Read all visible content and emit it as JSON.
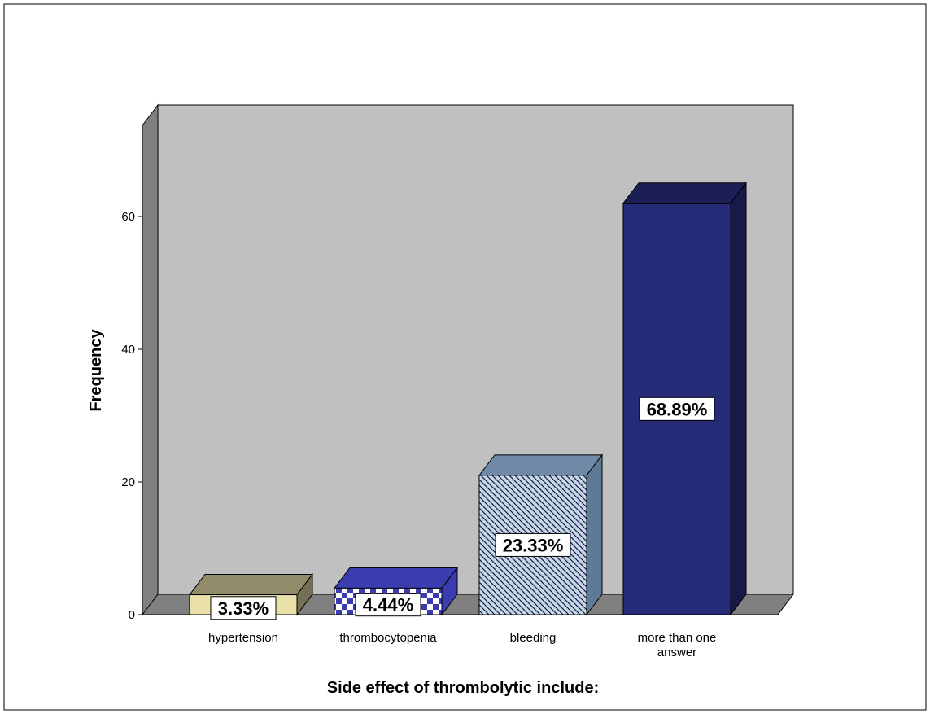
{
  "chart_data": {
    "type": "bar",
    "style": "3d",
    "xlabel": "Side effect of thrombolytic include:",
    "ylabel": "Frequency",
    "ylim": [
      0,
      60
    ],
    "yticks": [
      0,
      20,
      40,
      60
    ],
    "grid": false,
    "categories": [
      {
        "label_lines": [
          "hypertension"
        ],
        "value": 3,
        "percent_label": "3.33%",
        "color": "#e8e0a8",
        "pattern": "solid"
      },
      {
        "label_lines": [
          "thrombocytopenia"
        ],
        "value": 4,
        "percent_label": "4.44%",
        "color": "#3a3cb0",
        "pattern": "checker"
      },
      {
        "label_lines": [
          "bleeding"
        ],
        "value": 21,
        "percent_label": "23.33%",
        "color": "#c4d8ea",
        "pattern": "diagonal"
      },
      {
        "label_lines": [
          "more than one",
          "answer"
        ],
        "value": 62,
        "percent_label": "68.89%",
        "color": "#262b78",
        "pattern": "solid"
      }
    ],
    "colors": {
      "plot_background": "#c0c0c0",
      "floor": "#808080",
      "left_wall": "#808080"
    }
  }
}
